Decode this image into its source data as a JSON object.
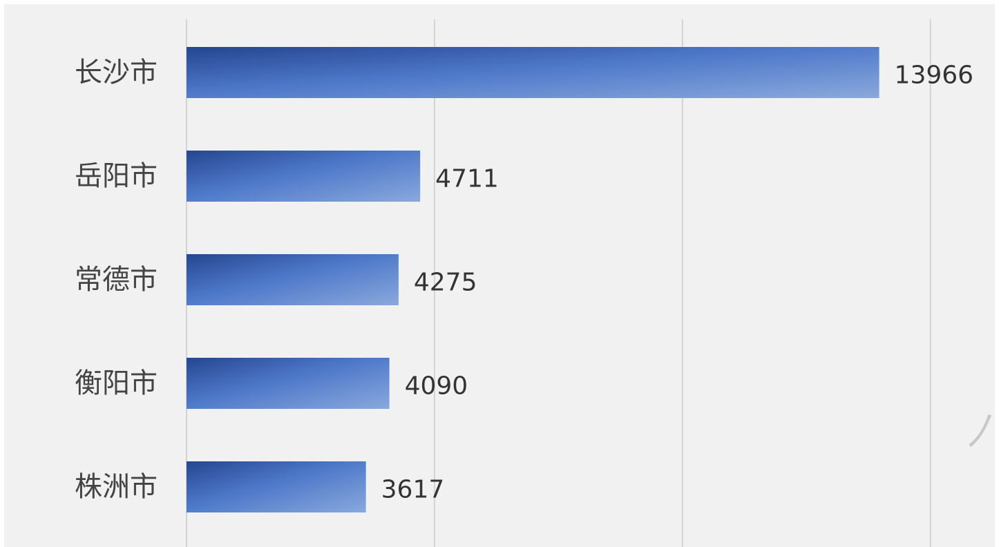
{
  "chart_data": {
    "type": "bar",
    "orientation": "horizontal",
    "categories": [
      "长沙市",
      "岳阳市",
      "常德市",
      "衡阳市",
      "株洲市"
    ],
    "values": [
      13966,
      4711,
      4275,
      4090,
      3617
    ],
    "title": "",
    "xlabel": "",
    "ylabel": "",
    "xlim": [
      0,
      15000
    ],
    "gridlines": "vertical",
    "x_tick_labels_visible": false,
    "legend": "none",
    "colors": {
      "background": "#f1f1f1",
      "bar_dark": "#25468f",
      "bar_mid": "#4d78c9",
      "bar_light": "#8aa8dc",
      "grid": "#d3d3d3",
      "category_text": "#444444",
      "value_text": "#333333"
    }
  }
}
